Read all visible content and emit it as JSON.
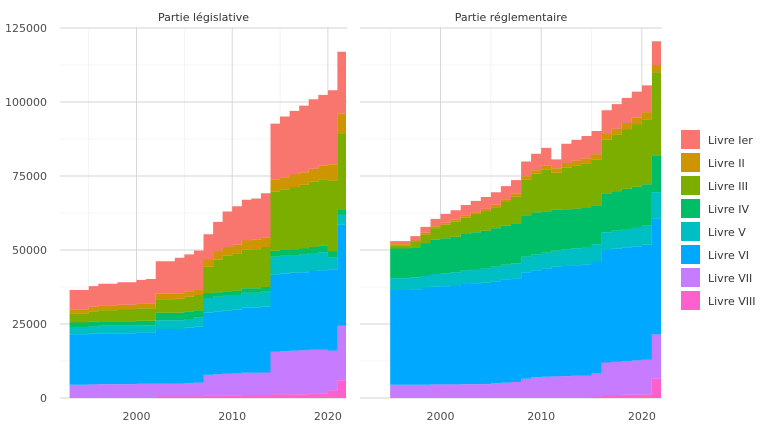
{
  "chart_data": {
    "type": "area",
    "stacked": true,
    "ylim": [
      0,
      125000
    ],
    "xlim": [
      1992,
      2022
    ],
    "y_ticks": [
      0,
      25000,
      50000,
      75000,
      100000,
      125000
    ],
    "x_ticks": [
      2000,
      2010,
      2020
    ],
    "grid": true,
    "legend_position": "right",
    "legend": [
      "Livre Ier",
      "Livre II",
      "Livre III",
      "Livre IV",
      "Livre V",
      "Livre VI",
      "Livre VII",
      "Livre VIII"
    ],
    "colors": [
      "#F8766D",
      "#CD9600",
      "#7CAE00",
      "#00BE67",
      "#00BFC4",
      "#00A9FF",
      "#C77CFF",
      "#FF61CC"
    ],
    "facets": [
      {
        "title": "Partie législative",
        "x": [
          1993,
          1995,
          1996,
          1998,
          2000,
          2001,
          2002,
          2004,
          2005,
          2006,
          2007,
          2008,
          2009,
          2010,
          2011,
          2012,
          2013,
          2014,
          2015,
          2016,
          2017,
          2018,
          2019,
          2020,
          2021
        ],
        "series": [
          {
            "name": "Livre VIII",
            "values": [
              0,
              0,
              0,
              0,
              0,
              0,
              500,
              500,
              500,
              500,
              800,
              800,
              900,
              900,
              1000,
              1000,
              1000,
              1200,
              1200,
              1300,
              1300,
              1400,
              1400,
              2500,
              6000
            ]
          },
          {
            "name": "Livre VII",
            "values": [
              4500,
              4600,
              4700,
              4700,
              4800,
              4800,
              4300,
              4300,
              4500,
              4700,
              7000,
              7200,
              7300,
              7400,
              7500,
              7500,
              7600,
              14500,
              14600,
              14700,
              14800,
              14900,
              15000,
              13500,
              18500
            ]
          },
          {
            "name": "Livre VI",
            "values": [
              17000,
              17100,
              17200,
              17200,
              17300,
              17300,
              18500,
              18500,
              18700,
              18900,
              21000,
              21200,
              21300,
              21500,
              22000,
              22000,
              22200,
              26000,
              26200,
              26300,
              26400,
              26600,
              26800,
              27500,
              34000
            ]
          },
          {
            "name": "Livre V",
            "values": [
              2500,
              2500,
              2500,
              2500,
              2500,
              2500,
              3000,
              3000,
              3000,
              3000,
              5000,
              5000,
              5000,
              5000,
              5000,
              5000,
              5100,
              6000,
              6000,
              6000,
              6000,
              6100,
              6100,
              4000,
              3500
            ]
          },
          {
            "name": "Livre IV",
            "values": [
              1500,
              1500,
              1500,
              1500,
              1500,
              1500,
              2500,
              2500,
              2500,
              2500,
              1500,
              1500,
              1500,
              1500,
              1600,
              1600,
              1600,
              2000,
              2000,
              2000,
              2000,
              2000,
              2100,
              2000,
              1500
            ]
          },
          {
            "name": "Livre III",
            "values": [
              3000,
              3500,
              3800,
              4000,
              4200,
              4200,
              4500,
              4700,
              5000,
              5200,
              9000,
              11000,
              12000,
              12500,
              13000,
              13200,
              13500,
              20000,
              20500,
              21000,
              21500,
              22000,
              22500,
              24000,
              26000
            ]
          },
          {
            "name": "Livre II",
            "values": [
              1500,
              1600,
              1600,
              1600,
              1600,
              1700,
              1900,
              1900,
              1900,
              2000,
              2500,
              2800,
              3000,
              3000,
              3100,
              3100,
              3200,
              4000,
              4100,
              4200,
              4300,
              4400,
              4500,
              5500,
              6500
            ]
          },
          {
            "name": "Livre Ier",
            "values": [
              6500,
              7000,
              7300,
              7600,
              8000,
              8200,
              11000,
              12000,
              12400,
              13000,
              8500,
              10000,
              12000,
              13000,
              13800,
              14000,
              15000,
              19000,
              20500,
              21500,
              22500,
              23500,
              24000,
              25000,
              21000
            ]
          }
        ]
      },
      {
        "title": "Partie réglementaire",
        "x": [
          1995,
          1997,
          1998,
          1999,
          2000,
          2001,
          2002,
          2003,
          2004,
          2005,
          2006,
          2007,
          2008,
          2009,
          2010,
          2011,
          2012,
          2013,
          2014,
          2015,
          2016,
          2017,
          2018,
          2019,
          2020,
          2021
        ],
        "series": [
          {
            "name": "Livre VIII",
            "values": [
              0,
              0,
              0,
              0,
              0,
              0,
              0,
              0,
              0,
              0,
              0,
              0,
              0,
              0,
              0,
              0,
              0,
              0,
              0,
              500,
              1000,
              1000,
              1100,
              1100,
              1200,
              6500
            ]
          },
          {
            "name": "Livre VII",
            "values": [
              4500,
              4500,
              4500,
              4600,
              4600,
              4600,
              4700,
              4700,
              4700,
              5000,
              5200,
              5400,
              6500,
              7000,
              7200,
              7300,
              7400,
              7500,
              7600,
              7800,
              11000,
              11200,
              11400,
              11600,
              11800,
              15000
            ]
          },
          {
            "name": "Livre VI",
            "values": [
              32000,
              32200,
              32500,
              33000,
              33200,
              33400,
              33800,
              34000,
              34200,
              34500,
              34800,
              35000,
              36000,
              36200,
              36500,
              37000,
              37200,
              37400,
              37600,
              37800,
              38000,
              38200,
              38400,
              38600,
              38800,
              39000
            ]
          },
          {
            "name": "Livre V",
            "values": [
              4000,
              4100,
              4200,
              4300,
              4400,
              4500,
              4600,
              4700,
              4800,
              4900,
              5000,
              5100,
              5200,
              5300,
              5400,
              5500,
              5600,
              5700,
              5800,
              5900,
              6000,
              6100,
              6200,
              6300,
              6400,
              9000
            ]
          },
          {
            "name": "Livre IV",
            "values": [
              10000,
              10100,
              11000,
              11500,
              11800,
              12000,
              12300,
              12600,
              12800,
              13000,
              13200,
              13500,
              14000,
              14200,
              14000,
              13800,
              13600,
              13400,
              13200,
              13000,
              13200,
              13400,
              13600,
              13800,
              14000,
              12500
            ]
          },
          {
            "name": "Livre III",
            "values": [
              1000,
              1800,
              3000,
              4000,
              4500,
              5000,
              5500,
              6000,
              6500,
              7000,
              8000,
              9000,
              12000,
              13000,
              14000,
              12500,
              14000,
              14500,
              15000,
              15500,
              18000,
              19000,
              20000,
              21000,
              22000,
              28000
            ]
          },
          {
            "name": "Livre II",
            "values": [
              500,
              500,
              600,
              600,
              700,
              700,
              800,
              800,
              900,
              900,
              1000,
              1000,
              1200,
              1300,
              1400,
              1500,
              1600,
              1700,
              1800,
              1900,
              2000,
              2100,
              2200,
              2300,
              2400,
              2500
            ]
          },
          {
            "name": "Livre Ier",
            "values": [
              1000,
              1500,
              2000,
              2500,
              3000,
              3200,
              3500,
              3800,
              4000,
              4200,
              4400,
              4600,
              5000,
              5500,
              6000,
              3000,
              6500,
              7000,
              7500,
              7800,
              8000,
              8300,
              8500,
              8800,
              9000,
              8000
            ]
          }
        ]
      }
    ]
  }
}
